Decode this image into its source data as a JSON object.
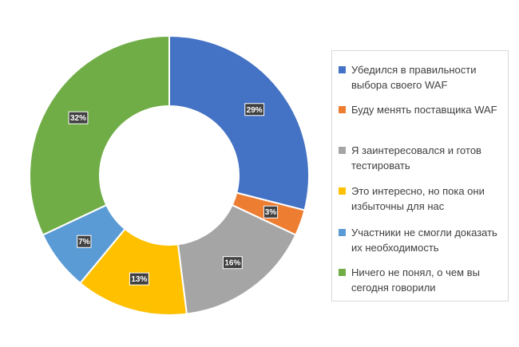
{
  "chart_data": {
    "type": "pie",
    "variant": "donut",
    "categories": [
      "Убедился в правильности выбора своего WAF",
      "Буду менять поставщика WAF",
      "Я заинтересовался и готов тестировать",
      "Это интересно, но пока они избыточны для нас",
      "Участники не смогли доказать их необходимость",
      "Ничего не понял, о чем вы сегодня говорили"
    ],
    "values": [
      29,
      3,
      16,
      13,
      7,
      32
    ],
    "data_labels": [
      "29%",
      "3%",
      "16%",
      "13%",
      "7%",
      "32%"
    ],
    "colors": [
      "#4472c4",
      "#ed7d31",
      "#a5a5a5",
      "#ffc000",
      "#5b9bd5",
      "#70ad47"
    ],
    "title": "",
    "legend_position": "right"
  }
}
